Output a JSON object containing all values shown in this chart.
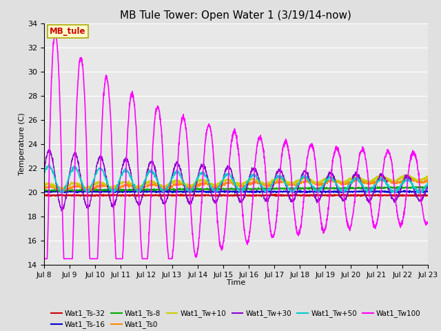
{
  "title": "MB Tule Tower: Open Water 1 (3/19/14-now)",
  "xlabel": "Time",
  "ylabel": "Temperature (C)",
  "ylim": [
    14,
    34
  ],
  "yticks": [
    14,
    16,
    18,
    20,
    22,
    24,
    26,
    28,
    30,
    32,
    34
  ],
  "background_color": "#e0e0e0",
  "plot_bg_color": "#e8e8e8",
  "grid_color": "#ffffff",
  "series": [
    {
      "label": "Wat1_Ts-32",
      "color": "#cc0000"
    },
    {
      "label": "Wat1_Ts-16",
      "color": "#0000cc"
    },
    {
      "label": "Wat1_Ts-8",
      "color": "#00aa00"
    },
    {
      "label": "Wat1_Ts0",
      "color": "#ff8800"
    },
    {
      "label": "Wat1_Tw+10",
      "color": "#cccc00"
    },
    {
      "label": "Wat1_Tw+30",
      "color": "#8800cc"
    },
    {
      "label": "Wat1_Tw+50",
      "color": "#00cccc"
    },
    {
      "label": "Wat1_Tw100",
      "color": "#ff00ff"
    }
  ],
  "n_days": 15,
  "start_day": 8,
  "annotation_label": "MB_tule",
  "annotation_color": "#cc0000",
  "annotation_bg": "#ffffcc",
  "annotation_border": "#aaaa00",
  "figsize": [
    6.4,
    4.8
  ],
  "dpi": 100
}
